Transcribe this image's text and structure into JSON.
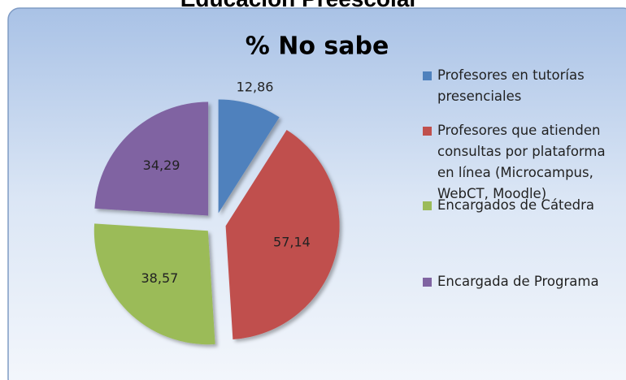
{
  "header": {
    "title": "Educación Preescolar"
  },
  "chart_data": {
    "type": "pie",
    "title": "% No sabe",
    "categories": [
      "Profesores en tutorías presenciales",
      "Profesores que atienden consultas por plataforma en línea (Microcampus, WebCT, Moodle)",
      "Encargados de Cátedra",
      "Encargada de Programa"
    ],
    "values": [
      12.86,
      57.14,
      38.57,
      34.29
    ],
    "value_labels": [
      "12,86",
      "57,14",
      "38,57",
      "34,29"
    ],
    "colors": [
      "#4f81bd",
      "#c0504d",
      "#9bbb59",
      "#8064a2"
    ],
    "legend": "right"
  }
}
